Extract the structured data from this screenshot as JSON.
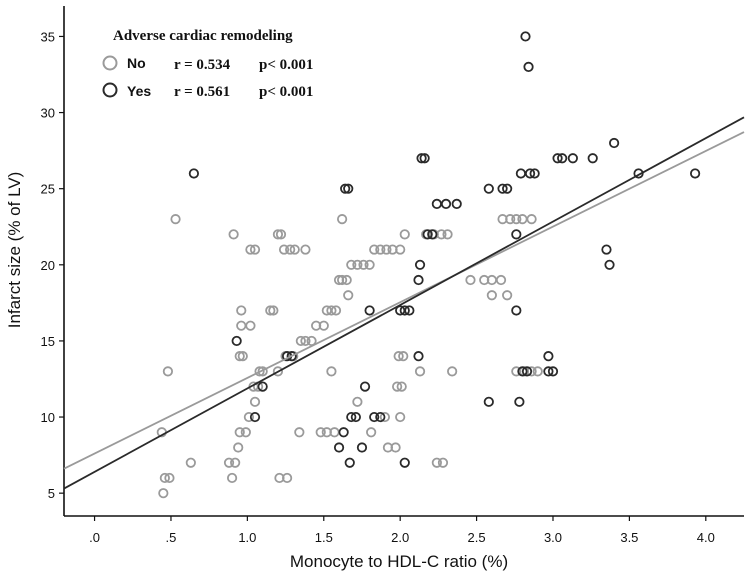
{
  "chart_data": {
    "type": "scatter",
    "title": "",
    "xlabel": "Monocyte to HDL-C ratio (%)",
    "ylabel": "Infarct size (% of LV)",
    "xlim": [
      -0.2,
      4.25
    ],
    "ylim": [
      3.5,
      37
    ],
    "xticks": [
      0.0,
      0.5,
      1.0,
      1.5,
      2.0,
      2.5,
      3.0,
      3.5,
      4.0
    ],
    "xtick_labels": [
      ".0",
      ".5",
      "1.0",
      "1.5",
      "2.0",
      "2.5",
      "3.0",
      "3.5",
      "4.0"
    ],
    "yticks": [
      5,
      10,
      15,
      20,
      25,
      30,
      35
    ],
    "ytick_labels": [
      "5",
      "10",
      "15",
      "20",
      "25",
      "30",
      "35"
    ],
    "legend": {
      "title": "Adverse cardiac remodeling",
      "position": "top-left"
    },
    "series": [
      {
        "name": "No",
        "color": "#9a9a9a",
        "stat_r": "r = 0.534",
        "stat_p": "p< 0.001",
        "fit": {
          "intercept": 7.6,
          "slope": 4.97
        },
        "points": [
          [
            0.45,
            5
          ],
          [
            0.46,
            6
          ],
          [
            0.49,
            6
          ],
          [
            0.44,
            9
          ],
          [
            0.48,
            13
          ],
          [
            0.53,
            23
          ],
          [
            0.63,
            7
          ],
          [
            0.88,
            7
          ],
          [
            0.92,
            7
          ],
          [
            0.9,
            6
          ],
          [
            0.94,
            8
          ],
          [
            0.95,
            9
          ],
          [
            0.99,
            9
          ],
          [
            0.95,
            14
          ],
          [
            0.97,
            14
          ],
          [
            0.96,
            16
          ],
          [
            0.96,
            17
          ],
          [
            1.02,
            16
          ],
          [
            0.91,
            22
          ],
          [
            1.02,
            21
          ],
          [
            1.05,
            21
          ],
          [
            1.01,
            10
          ],
          [
            1.04,
            12
          ],
          [
            1.07,
            12
          ],
          [
            1.05,
            11
          ],
          [
            1.08,
            13
          ],
          [
            1.1,
            13
          ],
          [
            1.15,
            17
          ],
          [
            1.17,
            17
          ],
          [
            1.2,
            22
          ],
          [
            1.22,
            22
          ],
          [
            1.24,
            21
          ],
          [
            1.28,
            21
          ],
          [
            1.31,
            21
          ],
          [
            1.38,
            21
          ],
          [
            1.21,
            6
          ],
          [
            1.26,
            6
          ],
          [
            1.2,
            13
          ],
          [
            1.25,
            14
          ],
          [
            1.3,
            14
          ],
          [
            1.35,
            15
          ],
          [
            1.38,
            15
          ],
          [
            1.42,
            15
          ],
          [
            1.45,
            16
          ],
          [
            1.5,
            16
          ],
          [
            1.52,
            17
          ],
          [
            1.55,
            17
          ],
          [
            1.58,
            17
          ],
          [
            1.6,
            19
          ],
          [
            1.62,
            19
          ],
          [
            1.65,
            19
          ],
          [
            1.68,
            20
          ],
          [
            1.72,
            20
          ],
          [
            1.76,
            20
          ],
          [
            1.8,
            20
          ],
          [
            1.83,
            21
          ],
          [
            1.87,
            21
          ],
          [
            1.91,
            21
          ],
          [
            1.95,
            21
          ],
          [
            2.0,
            21
          ],
          [
            2.03,
            22
          ],
          [
            1.62,
            23
          ],
          [
            1.66,
            18
          ],
          [
            1.34,
            9
          ],
          [
            1.48,
            9
          ],
          [
            1.52,
            9
          ],
          [
            1.57,
            9
          ],
          [
            1.55,
            13
          ],
          [
            1.72,
            11
          ],
          [
            1.81,
            9
          ],
          [
            1.9,
            10
          ],
          [
            1.92,
            8
          ],
          [
            1.97,
            8
          ],
          [
            2.0,
            10
          ],
          [
            1.98,
            12
          ],
          [
            2.01,
            12
          ],
          [
            1.99,
            14
          ],
          [
            2.02,
            14
          ],
          [
            2.13,
            13
          ],
          [
            2.17,
            22
          ],
          [
            2.22,
            22
          ],
          [
            2.27,
            22
          ],
          [
            2.31,
            22
          ],
          [
            2.34,
            13
          ],
          [
            2.24,
            7
          ],
          [
            2.28,
            7
          ],
          [
            2.46,
            19
          ],
          [
            2.55,
            19
          ],
          [
            2.6,
            19
          ],
          [
            2.66,
            19
          ],
          [
            2.6,
            18
          ],
          [
            2.7,
            18
          ],
          [
            2.67,
            23
          ],
          [
            2.72,
            23
          ],
          [
            2.76,
            23
          ],
          [
            2.8,
            23
          ],
          [
            2.86,
            23
          ],
          [
            2.76,
            13
          ],
          [
            2.81,
            13
          ],
          [
            2.86,
            13
          ],
          [
            2.9,
            13
          ]
        ]
      },
      {
        "name": "Yes",
        "color": "#2a2a2a",
        "stat_r": "r = 0.561",
        "stat_p": "p< 0.001",
        "fit": {
          "intercept": 6.4,
          "slope": 5.48
        },
        "points": [
          [
            0.65,
            26
          ],
          [
            0.93,
            15
          ],
          [
            1.05,
            10
          ],
          [
            1.1,
            12
          ],
          [
            1.26,
            14
          ],
          [
            1.29,
            14
          ],
          [
            1.6,
            8
          ],
          [
            1.63,
            9
          ],
          [
            1.64,
            25
          ],
          [
            1.66,
            25
          ],
          [
            1.67,
            7
          ],
          [
            1.68,
            10
          ],
          [
            1.71,
            10
          ],
          [
            1.75,
            8
          ],
          [
            1.77,
            12
          ],
          [
            1.8,
            17
          ],
          [
            1.83,
            10
          ],
          [
            1.87,
            10
          ],
          [
            2.0,
            17
          ],
          [
            2.03,
            17
          ],
          [
            2.06,
            17
          ],
          [
            2.03,
            7
          ],
          [
            2.12,
            19
          ],
          [
            2.13,
            20
          ],
          [
            2.12,
            14
          ],
          [
            2.14,
            27
          ],
          [
            2.16,
            27
          ],
          [
            2.18,
            22
          ],
          [
            2.21,
            22
          ],
          [
            2.24,
            24
          ],
          [
            2.3,
            24
          ],
          [
            2.37,
            24
          ],
          [
            2.58,
            25
          ],
          [
            2.58,
            11
          ],
          [
            2.67,
            25
          ],
          [
            2.7,
            25
          ],
          [
            2.76,
            22
          ],
          [
            2.76,
            17
          ],
          [
            2.78,
            11
          ],
          [
            2.79,
            26
          ],
          [
            2.82,
            35
          ],
          [
            2.84,
            33
          ],
          [
            2.85,
            26
          ],
          [
            2.88,
            26
          ],
          [
            2.8,
            13
          ],
          [
            2.83,
            13
          ],
          [
            2.97,
            14
          ],
          [
            2.97,
            13
          ],
          [
            3.0,
            13
          ],
          [
            3.03,
            27
          ],
          [
            3.06,
            27
          ],
          [
            3.13,
            27
          ],
          [
            3.26,
            27
          ],
          [
            3.35,
            21
          ],
          [
            3.37,
            20
          ],
          [
            3.4,
            28
          ],
          [
            3.56,
            26
          ],
          [
            3.93,
            26
          ]
        ]
      }
    ]
  }
}
